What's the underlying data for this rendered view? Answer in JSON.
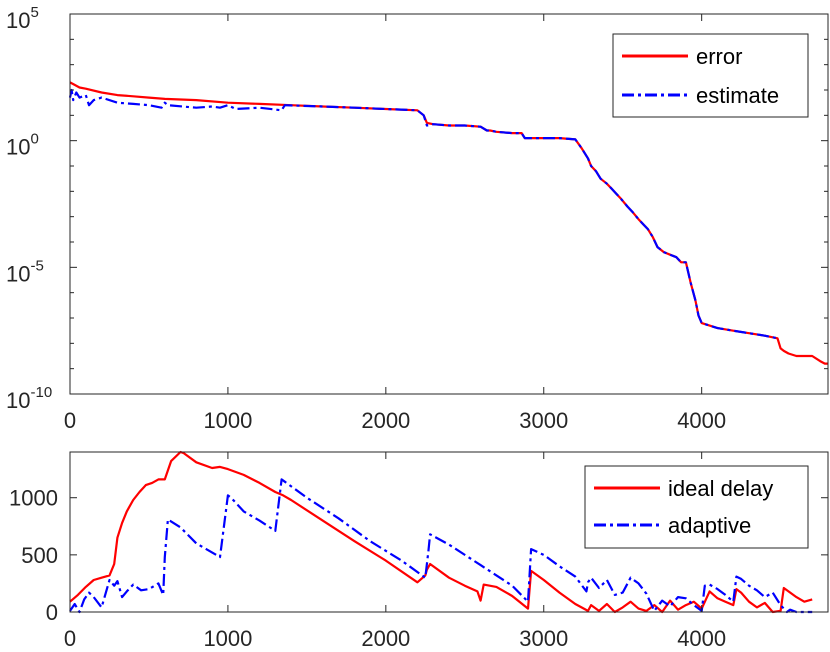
{
  "colors": {
    "red": "#ff0000",
    "blue": "#0000ff",
    "axis": "#262626"
  },
  "chart_data": [
    {
      "type": "line",
      "yscale": "log",
      "xlim": [
        0,
        4800
      ],
      "ylim_exp": [
        -10,
        5
      ],
      "x_ticks": [
        {
          "v": 0,
          "label": "0"
        },
        {
          "v": 1000,
          "label": "1000"
        },
        {
          "v": 2000,
          "label": "2000"
        },
        {
          "v": 3000,
          "label": "3000"
        },
        {
          "v": 4000,
          "label": "4000"
        }
      ],
      "y_ticks": [
        {
          "exp": 5,
          "base": "10",
          "sup": "5"
        },
        {
          "exp": 0,
          "base": "10",
          "sup": "0"
        },
        {
          "exp": -5,
          "base": "10",
          "sup": "-5"
        },
        {
          "exp": -10,
          "base": "10",
          "sup": "-10"
        }
      ],
      "legend": "top-right",
      "series": [
        {
          "name": "error",
          "color": "#ff0000",
          "dash": "solid",
          "x": [
            0,
            30,
            60,
            100,
            200,
            300,
            400,
            500,
            600,
            800,
            1000,
            1200,
            1400,
            1600,
            1800,
            2000,
            2200,
            2240,
            2260,
            2300,
            2400,
            2500,
            2600,
            2640,
            2660,
            2700,
            2800,
            2860,
            2880,
            2900,
            3000,
            3100,
            3200,
            3240,
            3280,
            3300,
            3330,
            3360,
            3400,
            3430,
            3460,
            3490,
            3530,
            3560,
            3600,
            3630,
            3660,
            3690,
            3720,
            3760,
            3800,
            3840,
            3870,
            3900,
            3930,
            3960,
            3980,
            4000,
            4100,
            4200,
            4300,
            4400,
            4480,
            4500,
            4520,
            4550,
            4600,
            4650,
            4700,
            4750,
            4780,
            4800
          ],
          "y": [
            2.3,
            2.2,
            2.1,
            2.05,
            1.9,
            1.8,
            1.75,
            1.7,
            1.65,
            1.6,
            1.5,
            1.45,
            1.4,
            1.35,
            1.3,
            1.25,
            1.2,
            1.0,
            0.7,
            0.65,
            0.6,
            0.6,
            0.55,
            0.4,
            0.4,
            0.35,
            0.3,
            0.3,
            0.1,
            0.1,
            0.1,
            0.1,
            0.05,
            -0.3,
            -0.7,
            -1.0,
            -1.2,
            -1.5,
            -1.7,
            -1.9,
            -2.1,
            -2.3,
            -2.6,
            -2.8,
            -3.1,
            -3.3,
            -3.5,
            -3.8,
            -4.2,
            -4.4,
            -4.5,
            -4.6,
            -4.8,
            -4.8,
            -5.6,
            -6.3,
            -6.9,
            -7.2,
            -7.4,
            -7.5,
            -7.6,
            -7.7,
            -7.8,
            -8.2,
            -8.3,
            -8.4,
            -8.5,
            -8.5,
            -8.5,
            -8.7,
            -8.8,
            -8.8
          ]
        },
        {
          "name": "estimate",
          "color": "#0000ff",
          "dash": "dashdot",
          "x": [
            0,
            10,
            20,
            40,
            60,
            100,
            120,
            150,
            200,
            300,
            400,
            500,
            580,
            600,
            620,
            800,
            900,
            950,
            1000,
            1050,
            1200,
            1340,
            1360,
            1600,
            1800,
            2000,
            2200,
            2240,
            2260,
            2300,
            2400,
            2500,
            2600,
            2640,
            2660,
            2700,
            2800,
            2860,
            2880,
            2900,
            3000,
            3100,
            3200,
            3240,
            3280,
            3300,
            3330,
            3360,
            3400,
            3430,
            3460,
            3490,
            3530,
            3560,
            3600,
            3630,
            3660,
            3690,
            3720,
            3760,
            3800,
            3840,
            3870,
            3900,
            3930,
            3960,
            3980,
            4000,
            4100,
            4200,
            4300,
            4400,
            4480
          ],
          "y": [
            1.7,
            2.0,
            1.6,
            1.9,
            1.7,
            1.8,
            1.4,
            1.6,
            1.7,
            1.5,
            1.45,
            1.4,
            1.3,
            1.5,
            1.4,
            1.3,
            1.35,
            1.3,
            1.4,
            1.25,
            1.3,
            1.2,
            1.4,
            1.35,
            1.3,
            1.25,
            1.2,
            1.0,
            0.6,
            0.65,
            0.6,
            0.6,
            0.55,
            0.4,
            0.4,
            0.35,
            0.3,
            0.3,
            0.1,
            0.1,
            0.1,
            0.1,
            0.05,
            -0.3,
            -0.7,
            -1.0,
            -1.2,
            -1.5,
            -1.7,
            -1.9,
            -2.1,
            -2.3,
            -2.6,
            -2.8,
            -3.1,
            -3.3,
            -3.5,
            -3.8,
            -4.2,
            -4.4,
            -4.5,
            -4.6,
            -4.8,
            -4.8,
            -5.6,
            -6.3,
            -6.9,
            -7.2,
            -7.4,
            -7.5,
            -7.6,
            -7.7,
            -7.8
          ]
        }
      ]
    },
    {
      "type": "line",
      "xlim": [
        0,
        4800
      ],
      "ylim": [
        0,
        1400
      ],
      "x_ticks": [
        {
          "v": 0,
          "label": "0"
        },
        {
          "v": 1000,
          "label": "1000"
        },
        {
          "v": 2000,
          "label": "2000"
        },
        {
          "v": 3000,
          "label": "3000"
        },
        {
          "v": 4000,
          "label": "4000"
        }
      ],
      "y_ticks": [
        {
          "v": 0,
          "label": "0"
        },
        {
          "v": 500,
          "label": "500"
        },
        {
          "v": 1000,
          "label": "1000"
        }
      ],
      "legend": "top-right",
      "series": [
        {
          "name": "ideal delay",
          "color": "#ff0000",
          "dash": "solid",
          "x": [
            0,
            50,
            100,
            150,
            200,
            250,
            280,
            300,
            330,
            360,
            400,
            440,
            480,
            520,
            560,
            600,
            640,
            700,
            720,
            800,
            900,
            950,
            1000,
            1100,
            1200,
            1300,
            1350,
            1400,
            1600,
            1800,
            2000,
            2200,
            2250,
            2260,
            2280,
            2400,
            2500,
            2580,
            2600,
            2620,
            2700,
            2800,
            2900,
            2920,
            3000,
            3100,
            3200,
            3280,
            3300,
            3350,
            3400,
            3450,
            3500,
            3550,
            3600,
            3650,
            3700,
            3750,
            3800,
            3850,
            3900,
            3950,
            4000,
            4050,
            4100,
            4150,
            4200,
            4220,
            4250,
            4300,
            4350,
            4400,
            4450,
            4500,
            4520,
            4550,
            4600,
            4650,
            4700
          ],
          "y": [
            90,
            150,
            220,
            280,
            300,
            320,
            420,
            650,
            780,
            880,
            980,
            1050,
            1110,
            1130,
            1160,
            1160,
            1320,
            1400,
            1390,
            1310,
            1260,
            1270,
            1250,
            1200,
            1130,
            1050,
            1020,
            980,
            800,
            620,
            450,
            260,
            320,
            370,
            420,
            300,
            230,
            180,
            100,
            240,
            220,
            140,
            30,
            360,
            280,
            170,
            70,
            10,
            60,
            10,
            70,
            0,
            40,
            90,
            30,
            10,
            60,
            0,
            100,
            20,
            60,
            90,
            30,
            180,
            120,
            90,
            60,
            200,
            170,
            90,
            40,
            80,
            0,
            10,
            210,
            180,
            130,
            90,
            110
          ]
        },
        {
          "name": "adaptive",
          "color": "#0000ff",
          "dash": "dashdot",
          "x": [
            0,
            30,
            60,
            90,
            120,
            150,
            200,
            250,
            280,
            300,
            330,
            360,
            400,
            450,
            500,
            560,
            590,
            600,
            620,
            700,
            800,
            950,
            1000,
            1020,
            1100,
            1200,
            1300,
            1340,
            1360,
            1500,
            1700,
            1900,
            2100,
            2250,
            2270,
            2280,
            2400,
            2600,
            2800,
            2900,
            2920,
            3000,
            3100,
            3200,
            3270,
            3280,
            3300,
            3350,
            3400,
            3450,
            3500,
            3550,
            3600,
            3650,
            3700,
            3750,
            3800,
            3850,
            3900,
            3950,
            4000,
            4020,
            4050,
            4100,
            4150,
            4200,
            4220,
            4250,
            4300,
            4350,
            4400,
            4450,
            4500,
            4540,
            4560,
            4600,
            4650,
            4700
          ],
          "y": [
            10,
            70,
            0,
            110,
            170,
            130,
            40,
            280,
            230,
            270,
            130,
            180,
            240,
            190,
            200,
            250,
            150,
            480,
            810,
            740,
            600,
            480,
            1020,
            1000,
            880,
            800,
            710,
            1160,
            1140,
            1000,
            820,
            620,
            450,
            300,
            540,
            680,
            590,
            410,
            230,
            90,
            550,
            500,
            400,
            310,
            180,
            260,
            300,
            210,
            280,
            150,
            170,
            300,
            250,
            160,
            10,
            100,
            50,
            130,
            120,
            60,
            10,
            230,
            240,
            200,
            150,
            90,
            310,
            290,
            230,
            190,
            130,
            170,
            60,
            0,
            20,
            0,
            0,
            0
          ]
        }
      ]
    }
  ]
}
